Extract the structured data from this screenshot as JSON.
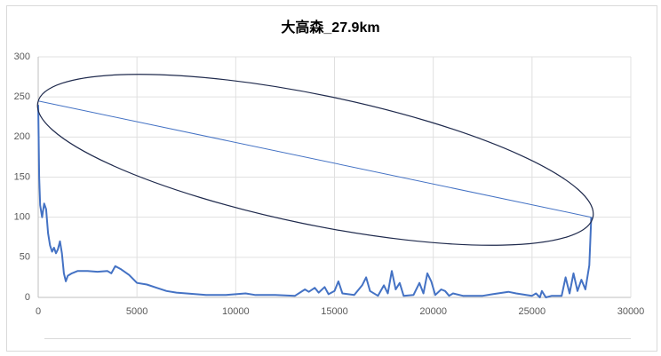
{
  "chart_data": {
    "type": "scatter",
    "title": "大高森_27.9km",
    "series": [
      {
        "color": "#4472c4",
        "width": 2,
        "x": [
          0,
          50,
          100,
          200,
          300,
          400,
          500,
          600,
          700,
          800,
          900,
          1000,
          1100,
          1200,
          1300,
          1400,
          1500,
          1700,
          2000,
          2500,
          3000,
          3500,
          3700,
          3900,
          4200,
          4600,
          5000,
          5500,
          6000,
          6500,
          7000,
          7500,
          8000,
          8500,
          9000,
          9500,
          10000,
          10500,
          11000,
          12000,
          13000,
          13500,
          13700,
          14000,
          14200,
          14500,
          14700,
          15000,
          15200,
          15400,
          16000,
          16400,
          16600,
          16800,
          17200,
          17500,
          17700,
          17900,
          18100,
          18300,
          18500,
          19000,
          19300,
          19500,
          19700,
          19900,
          20100,
          20400,
          20600,
          20800,
          21000,
          21500,
          22500,
          23000,
          23800,
          24200,
          25000,
          25200,
          25400,
          25500,
          25700,
          26000,
          26500,
          26700,
          26900,
          27100,
          27300,
          27500,
          27700,
          27900,
          28000
        ],
        "values": [
          240,
          150,
          115,
          100,
          117,
          110,
          80,
          65,
          57,
          62,
          55,
          60,
          70,
          55,
          30,
          20,
          27,
          30,
          33,
          33,
          32,
          33,
          30,
          39,
          35,
          28,
          18,
          16,
          12,
          8,
          6,
          5,
          4,
          3,
          3,
          3,
          4,
          5,
          3,
          3,
          2,
          10,
          7,
          12,
          6,
          13,
          4,
          8,
          20,
          5,
          3,
          15,
          25,
          8,
          2,
          15,
          5,
          33,
          10,
          18,
          2,
          3,
          18,
          5,
          30,
          20,
          3,
          10,
          8,
          2,
          5,
          2,
          2,
          4,
          7,
          5,
          2,
          5,
          0,
          8,
          0,
          2,
          2,
          25,
          5,
          30,
          8,
          22,
          10,
          40,
          100
        ]
      },
      {
        "color": "#4472c4",
        "width": 1,
        "x": [
          0,
          28000
        ],
        "values": [
          245,
          100
        ]
      }
    ],
    "xlim": [
      0,
      30000
    ],
    "xticks": [
      0,
      5000,
      10000,
      15000,
      20000,
      25000,
      30000
    ],
    "ylim": [
      0,
      300
    ],
    "yticks": [
      0,
      50,
      100,
      150,
      200,
      250,
      300
    ],
    "grid": true
  }
}
